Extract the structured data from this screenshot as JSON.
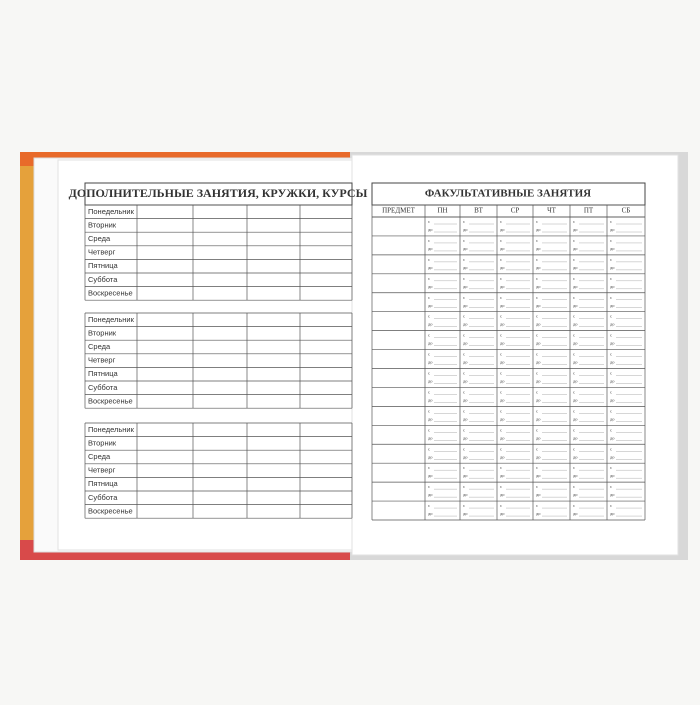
{
  "left_page": {
    "title": "ДОПОЛНИТЕЛЬНЫЕ ЗАНЯТИЯ, КРУЖКИ, КУРСЫ",
    "blocks": [
      [
        "Понедельник",
        "Вторник",
        "Среда",
        "Четверг",
        "Пятница",
        "Суббота",
        "Воскресенье"
      ],
      [
        "Понедельник",
        "Вторник",
        "Среда",
        "Четверг",
        "Пятница",
        "Суббота",
        "Воскресенье"
      ],
      [
        "Понедельник",
        "Вторник",
        "Среда",
        "Четверг",
        "Пятница",
        "Суббота",
        "Воскресенье"
      ]
    ]
  },
  "right_page": {
    "title": "ФАКУЛЬТАТИВНЫЕ ЗАНЯТИЯ",
    "headers": [
      "ПРЕДМЕТ",
      "ПН",
      "ВТ",
      "СР",
      "ЧТ",
      "ПТ",
      "СБ"
    ],
    "from_label": "с",
    "to_label": "до"
  }
}
